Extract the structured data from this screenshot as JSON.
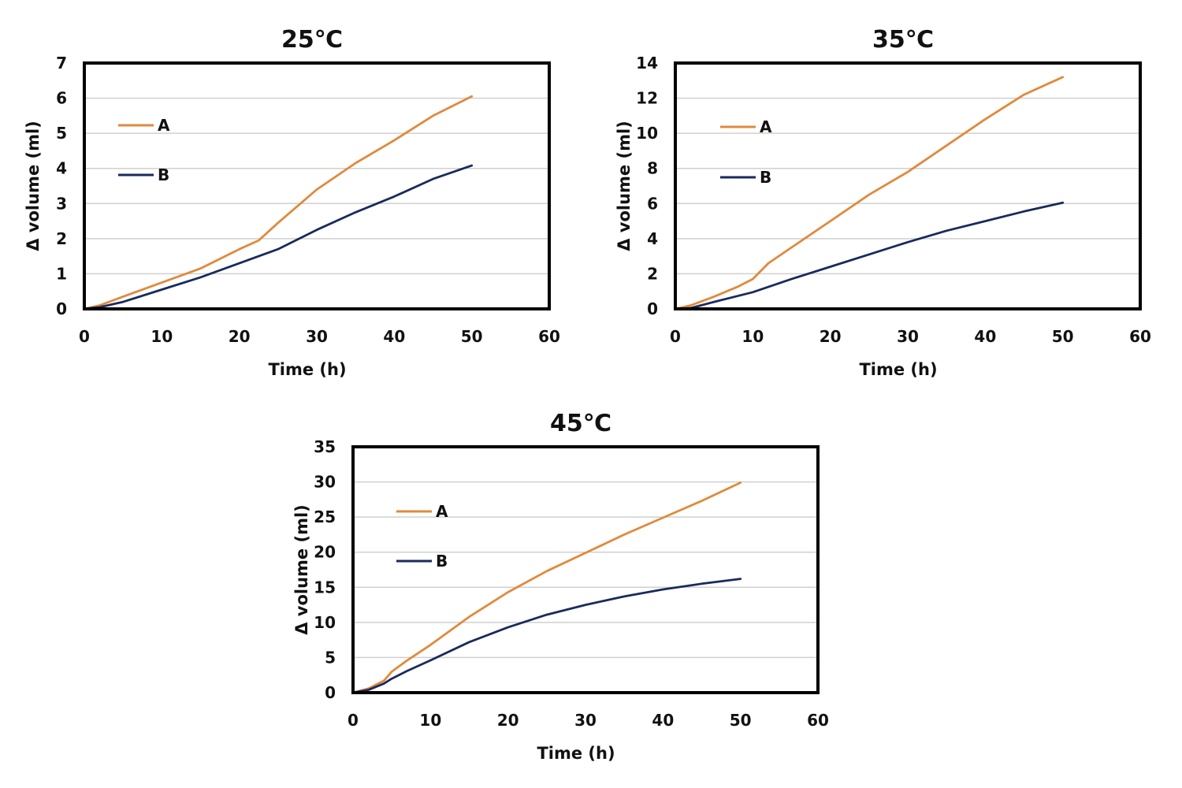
{
  "colors": {
    "A": "#e08a3c",
    "B": "#1a2a5c",
    "grid": "#d0d0d0",
    "frame": "#000000"
  },
  "chart_data": [
    {
      "type": "line",
      "title": "25℃",
      "xlabel": "Time (h)",
      "ylabel": "Δ volume (ml)",
      "xlim": [
        0,
        60
      ],
      "ylim": [
        0,
        7
      ],
      "xticks": [
        "0",
        "10",
        "20",
        "30",
        "40",
        "50",
        "60"
      ],
      "yticks": [
        "0",
        "1",
        "2",
        "3",
        "4",
        "5",
        "6",
        "7"
      ],
      "grid": true,
      "legend_position": "upper-left",
      "series": [
        {
          "name": "A",
          "x": [
            0,
            2,
            5,
            10,
            15,
            20,
            22.5,
            25,
            30,
            35,
            40,
            45,
            50
          ],
          "y": [
            0,
            0.1,
            0.35,
            0.75,
            1.15,
            1.7,
            1.95,
            2.45,
            3.4,
            4.15,
            4.8,
            5.5,
            6.05
          ]
        },
        {
          "name": "B",
          "x": [
            0,
            2,
            5,
            10,
            15,
            20,
            25,
            30,
            35,
            40,
            45,
            50
          ],
          "y": [
            0,
            0.05,
            0.2,
            0.55,
            0.9,
            1.3,
            1.7,
            2.25,
            2.75,
            3.2,
            3.7,
            4.08
          ]
        }
      ]
    },
    {
      "type": "line",
      "title": "35℃",
      "xlabel": "Time (h)",
      "ylabel": "Δ volume (ml)",
      "xlim": [
        0,
        60
      ],
      "ylim": [
        0,
        14
      ],
      "xticks": [
        "0",
        "10",
        "20",
        "30",
        "40",
        "50",
        "60"
      ],
      "yticks": [
        "0",
        "2",
        "4",
        "6",
        "8",
        "10",
        "12",
        "14"
      ],
      "grid": true,
      "legend_position": "upper-left",
      "series": [
        {
          "name": "A",
          "x": [
            0,
            2,
            5,
            8,
            10,
            12,
            15,
            20,
            25,
            30,
            35,
            40,
            45,
            50
          ],
          "y": [
            0,
            0.2,
            0.7,
            1.25,
            1.7,
            2.6,
            3.5,
            5.0,
            6.5,
            7.8,
            9.3,
            10.8,
            12.2,
            13.2
          ]
        },
        {
          "name": "B",
          "x": [
            0,
            2,
            5,
            10,
            15,
            20,
            25,
            30,
            35,
            40,
            45,
            50
          ],
          "y": [
            0,
            0.05,
            0.4,
            0.95,
            1.7,
            2.4,
            3.1,
            3.8,
            4.45,
            5.0,
            5.55,
            6.05
          ]
        }
      ]
    },
    {
      "type": "line",
      "title": "45℃",
      "xlabel": "Time (h)",
      "ylabel": "Δ volume (ml)",
      "xlim": [
        0,
        60
      ],
      "ylim": [
        0,
        35
      ],
      "xticks": [
        "0",
        "10",
        "20",
        "30",
        "40",
        "50",
        "60"
      ],
      "yticks": [
        "0",
        "5",
        "10",
        "15",
        "20",
        "25",
        "30",
        "35"
      ],
      "grid": true,
      "legend_position": "upper-left",
      "series": [
        {
          "name": "A",
          "x": [
            0,
            2,
            4,
            5,
            7,
            10,
            15,
            20,
            25,
            30,
            35,
            40,
            45,
            50
          ],
          "y": [
            0,
            0.6,
            1.7,
            3.0,
            4.6,
            6.8,
            10.8,
            14.3,
            17.3,
            19.9,
            22.5,
            24.9,
            27.3,
            29.9
          ]
        },
        {
          "name": "B",
          "x": [
            0,
            2,
            4,
            5,
            7,
            10,
            15,
            20,
            25,
            30,
            35,
            40,
            45,
            50
          ],
          "y": [
            0,
            0.4,
            1.3,
            2.0,
            3.1,
            4.6,
            7.2,
            9.3,
            11.1,
            12.5,
            13.7,
            14.7,
            15.5,
            16.2
          ]
        }
      ]
    }
  ]
}
